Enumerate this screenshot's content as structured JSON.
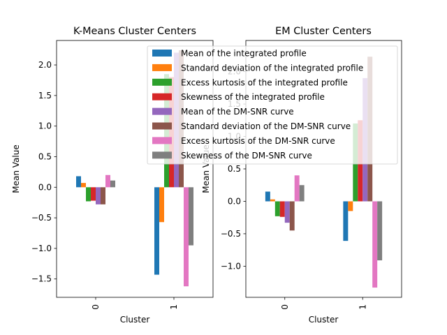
{
  "series_colors": [
    "#1f77b4",
    "#ff7f0e",
    "#2ca02c",
    "#d62728",
    "#9467bd",
    "#8c564b",
    "#e377c2",
    "#7f7f7f"
  ],
  "chart_data": [
    {
      "type": "bar",
      "title": "K-Means Cluster Centers",
      "xlabel": "Cluster",
      "ylabel": "Mean Value",
      "categories": [
        "0",
        "1"
      ],
      "ylim": [
        -1.8,
        2.4
      ],
      "yticks": [
        -1.5,
        -1.0,
        -0.5,
        0.0,
        0.5,
        1.0,
        1.5,
        2.0
      ],
      "ytick_labels": [
        "−1.5",
        "−1.0",
        "−0.5",
        "0.0",
        "0.5",
        "1.0",
        "1.5",
        "2.0"
      ],
      "legend_position": "upper right",
      "series": [
        {
          "name": "Mean of the integrated profile",
          "values": [
            0.18,
            -1.43
          ]
        },
        {
          "name": "Standard deviation of the integrated profile",
          "values": [
            0.07,
            -0.57
          ]
        },
        {
          "name": "Excess kurtosis of the integrated profile",
          "values": [
            -0.23,
            1.85
          ]
        },
        {
          "name": "Skewness of the integrated profile",
          "values": [
            -0.22,
            1.8
          ]
        },
        {
          "name": "Mean of the DM-SNR curve",
          "values": [
            -0.28,
            2.2
          ]
        },
        {
          "name": "Standard deviation of the DM-SNR curve",
          "values": [
            -0.28,
            2.24
          ]
        },
        {
          "name": "Excess kurtosis of the DM-SNR curve",
          "values": [
            0.2,
            -1.62
          ]
        },
        {
          "name": "Skewness of the DM-SNR curve",
          "values": [
            0.11,
            -0.95
          ]
        }
      ]
    },
    {
      "type": "bar",
      "title": "EM Cluster Centers",
      "xlabel": "Cluster",
      "ylabel": "Mean Value",
      "categories": [
        "0",
        "1"
      ],
      "ylim": [
        -1.48,
        2.48
      ],
      "yticks": [
        -1.0,
        -0.5,
        0.0,
        0.5,
        1.0,
        1.5,
        2.0
      ],
      "ytick_labels": [
        "−1.0",
        "−0.5",
        "0.0",
        "0.5",
        "1.0",
        "1.5",
        "2.0"
      ],
      "series": [
        {
          "name": "Mean of the integrated profile",
          "values": [
            0.15,
            -0.61
          ]
        },
        {
          "name": "Standard deviation of the integrated profile",
          "values": [
            0.03,
            -0.15
          ]
        },
        {
          "name": "Excess kurtosis of the integrated profile",
          "values": [
            -0.23,
            1.2
          ]
        },
        {
          "name": "Skewness of the integrated profile",
          "values": [
            -0.24,
            1.25
          ]
        },
        {
          "name": "Mean of the DM-SNR curve",
          "values": [
            -0.33,
            1.9
          ]
        },
        {
          "name": "Standard deviation of the DM-SNR curve",
          "values": [
            -0.45,
            2.23
          ]
        },
        {
          "name": "Excess kurtosis of the DM-SNR curve",
          "values": [
            0.4,
            -1.33
          ]
        },
        {
          "name": "Skewness of the DM-SNR curve",
          "values": [
            0.25,
            -0.91
          ]
        }
      ]
    }
  ]
}
